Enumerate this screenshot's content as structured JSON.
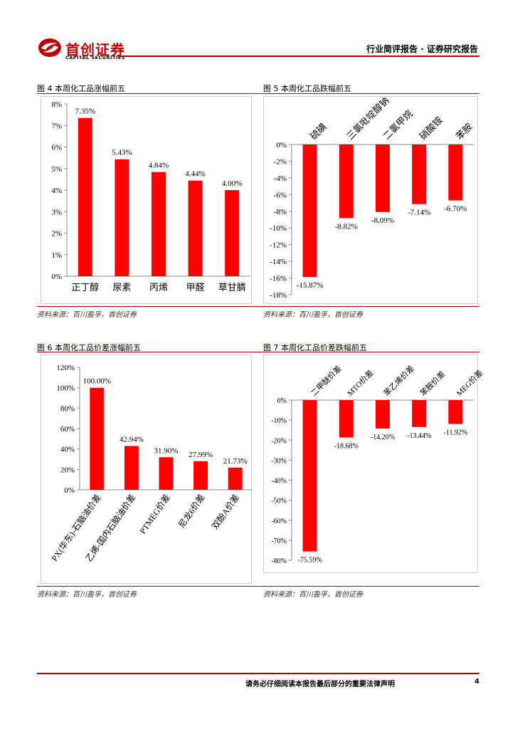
{
  "header": {
    "company_cn": "首创证券",
    "company_en": "CAPITAL SECURITIES",
    "report_type": "行业简评报告 · 证券研究报告",
    "brand_color": "#c00000"
  },
  "figures": [
    {
      "title": "图 4 本周化工品涨幅前五",
      "source": "资料来源：百川盈孚，首创证券"
    },
    {
      "title": "图 5 本周化工品跌幅前五",
      "source": "资料来源：百川盈孚，首创证券"
    },
    {
      "title": "图 6 本周化工品价差涨幅前五",
      "source": "资料来源：百川盈孚，首创证券"
    },
    {
      "title": "图 7 本周化工品价差跌幅前五",
      "source": "资料来源：百川盈孚，首创证券"
    }
  ],
  "chart_data": [
    {
      "type": "bar",
      "title": "图 4 本周化工品涨幅前五",
      "categories": [
        "正丁醇",
        "尿素",
        "丙烯",
        "甲醛",
        "草甘膦"
      ],
      "values": [
        7.35,
        5.43,
        4.84,
        4.44,
        4.0
      ],
      "labels": [
        "7.35%",
        "5.43%",
        "4.84%",
        "4.44%",
        "4.00%"
      ],
      "ylim": [
        0,
        8
      ],
      "yticks": [
        "0%",
        "1%",
        "2%",
        "3%",
        "4%",
        "5%",
        "6%",
        "7%",
        "8%"
      ],
      "bar_color": "#ff0000"
    },
    {
      "type": "bar",
      "title": "图 5 本周化工品跌幅前五",
      "categories": [
        "硫磺",
        "三氯吡啶醇钠",
        "二氯甲烷",
        "硝酸铵",
        "苯胺"
      ],
      "values": [
        -15.87,
        -8.82,
        -8.09,
        -7.14,
        -6.7
      ],
      "labels": [
        "-15.87%",
        "-8.82%",
        "-8.09%",
        "-7.14%",
        "-6.70%"
      ],
      "ylim": [
        -18,
        0
      ],
      "yticks": [
        "0%",
        "-2%",
        "-4%",
        "-6%",
        "-8%",
        "-10%",
        "-12%",
        "-14%",
        "-16%",
        "-18%"
      ],
      "bar_color": "#ff0000"
    },
    {
      "type": "bar",
      "title": "图 6 本周化工品价差涨幅前五",
      "categories": [
        "PX(华东)-石脑油价差",
        "乙烯-国内石脑油价差",
        "PTMEG价差",
        "尼龙6价差",
        "双酚A价差"
      ],
      "values": [
        100.0,
        42.94,
        31.9,
        27.99,
        21.73
      ],
      "labels": [
        "100.00%",
        "42.94%",
        "31.90%",
        "27.99%",
        "21.73%"
      ],
      "ylim": [
        0,
        120
      ],
      "yticks": [
        "0%",
        "20%",
        "40%",
        "60%",
        "80%",
        "100%",
        "120%"
      ],
      "bar_color": "#ff0000"
    },
    {
      "type": "bar",
      "title": "图 7 本周化工品价差跌幅前五",
      "categories": [
        "二甲醚价差",
        "MTO价差",
        "苯乙烯价差",
        "苯胺价差",
        "MEG价差"
      ],
      "values": [
        -75.59,
        -18.68,
        -14.2,
        -13.44,
        -11.92
      ],
      "labels": [
        "-75.59%",
        "-18.68%",
        "-14.20%",
        "-13.44%",
        "-11.92%"
      ],
      "ylim": [
        -80,
        0
      ],
      "yticks": [
        "0%",
        "-10%",
        "-20%",
        "-30%",
        "-40%",
        "-50%",
        "-60%",
        "-70%",
        "-80%"
      ],
      "bar_color": "#ff0000"
    }
  ],
  "footer": {
    "disclaimer": "请务必仔细阅读本报告最后部分的重要法律声明",
    "page_number": "4"
  }
}
